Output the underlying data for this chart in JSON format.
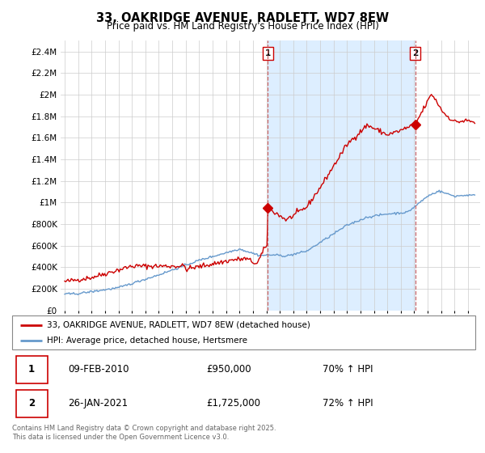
{
  "title_line1": "33, OAKRIDGE AVENUE, RADLETT, WD7 8EW",
  "title_line2": "Price paid vs. HM Land Registry's House Price Index (HPI)",
  "legend_label_red": "33, OAKRIDGE AVENUE, RADLETT, WD7 8EW (detached house)",
  "legend_label_blue": "HPI: Average price, detached house, Hertsmere",
  "annotation1_box": "1",
  "annotation1_date": "09-FEB-2010",
  "annotation1_price": "£950,000",
  "annotation1_hpi": "70% ↑ HPI",
  "annotation2_box": "2",
  "annotation2_date": "26-JAN-2021",
  "annotation2_price": "£1,725,000",
  "annotation2_hpi": "72% ↑ HPI",
  "footer": "Contains HM Land Registry data © Crown copyright and database right 2025.\nThis data is licensed under the Open Government Licence v3.0.",
  "red_color": "#cc0000",
  "blue_color": "#6699cc",
  "dashed_line_color": "#cc6666",
  "shaded_color": "#ddeeff",
  "grid_color": "#cccccc",
  "ylim_max": 2500000,
  "ylim_min": 0,
  "year_start": 1995,
  "year_end": 2026,
  "sale1_year": 2010.1,
  "sale1_price": 950000,
  "sale2_year": 2021.07,
  "sale2_price": 1725000
}
